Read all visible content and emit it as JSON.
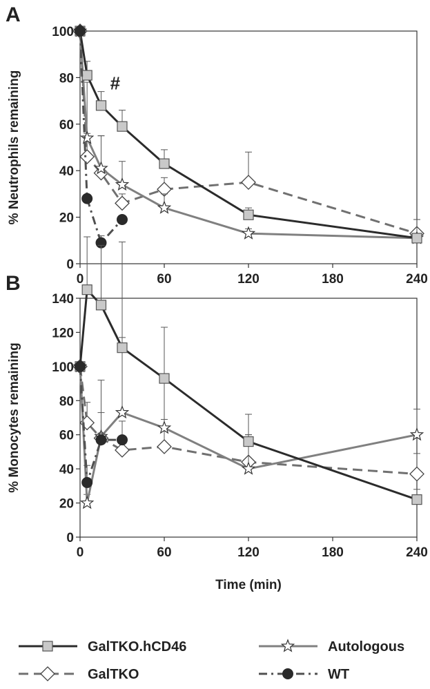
{
  "chart_data": [
    {
      "type": "line",
      "panel_label": "A",
      "ylabel": "% Neutrophils remaining",
      "xlabel": "",
      "xlim": [
        0,
        240
      ],
      "ylim": [
        0,
        100
      ],
      "xticks": [
        0,
        60,
        120,
        180,
        240
      ],
      "yticks": [
        0,
        20,
        40,
        60,
        80,
        100
      ],
      "annotation": "#",
      "series": [
        {
          "key": "galtko_hcd46",
          "x": [
            0,
            5,
            15,
            30,
            60,
            120,
            240
          ],
          "y": [
            100,
            81,
            68,
            59,
            43,
            21,
            11
          ],
          "err": [
            0,
            6,
            6,
            7,
            6,
            3,
            1
          ]
        },
        {
          "key": "autologous",
          "x": [
            0,
            5,
            15,
            30,
            60,
            120,
            240
          ],
          "y": [
            100,
            54,
            41,
            34,
            24,
            13,
            11
          ],
          "err": [
            0,
            24,
            14,
            10,
            6,
            2,
            8
          ]
        },
        {
          "key": "galtko",
          "x": [
            0,
            5,
            15,
            30,
            60,
            120,
            240
          ],
          "y": [
            100,
            46,
            39,
            26,
            32,
            35,
            13
          ],
          "err": [
            0,
            10,
            16,
            4,
            5,
            13,
            6
          ]
        },
        {
          "key": "wt",
          "x": [
            0,
            5,
            15,
            30
          ],
          "y": [
            100,
            28,
            9,
            19
          ],
          "err": [
            0,
            0,
            3,
            0
          ]
        }
      ]
    },
    {
      "type": "line",
      "panel_label": "B",
      "ylabel": "% Monocytes remaining",
      "xlabel": "Time (min)",
      "xlim": [
        0,
        240
      ],
      "ylim": [
        0,
        140
      ],
      "xticks": [
        0,
        60,
        120,
        180,
        240
      ],
      "yticks": [
        0,
        20,
        40,
        60,
        80,
        100,
        120,
        140
      ],
      "series": [
        {
          "key": "galtko_hcd46",
          "x": [
            0,
            5,
            15,
            30,
            60,
            120,
            240
          ],
          "y": [
            100,
            145,
            136,
            111,
            93,
            56,
            22
          ],
          "err": [
            0,
            31,
            35,
            62,
            30,
            16,
            6
          ]
        },
        {
          "key": "autologous",
          "x": [
            0,
            5,
            15,
            30,
            60,
            120,
            240
          ],
          "y": [
            100,
            20,
            59,
            73,
            64,
            40,
            60
          ],
          "err": [
            0,
            5,
            33,
            44,
            27,
            20,
            15
          ]
        },
        {
          "key": "galtko",
          "x": [
            0,
            5,
            15,
            30,
            60,
            120,
            240
          ],
          "y": [
            100,
            67,
            58,
            51,
            53,
            44,
            37
          ],
          "err": [
            0,
            12,
            15,
            17,
            16,
            16,
            12
          ]
        },
        {
          "key": "wt",
          "x": [
            0,
            5,
            15,
            30
          ],
          "y": [
            100,
            32,
            57,
            57
          ],
          "err": [
            0,
            10,
            4,
            0
          ]
        }
      ]
    }
  ],
  "legend": [
    {
      "key": "galtko_hcd46",
      "label": "GalTKO.hCD46",
      "color": "#2b2b2b",
      "dash": "solid",
      "marker": "square"
    },
    {
      "key": "autologous",
      "label": "Autologous",
      "color": "#808080",
      "dash": "solid",
      "marker": "star"
    },
    {
      "key": "galtko",
      "label": "GalTKO",
      "color": "#707070",
      "dash": "dashed",
      "marker": "diamond"
    },
    {
      "key": "wt",
      "label": "WT",
      "color": "#505050",
      "dash": "dashdot",
      "marker": "circle"
    }
  ]
}
